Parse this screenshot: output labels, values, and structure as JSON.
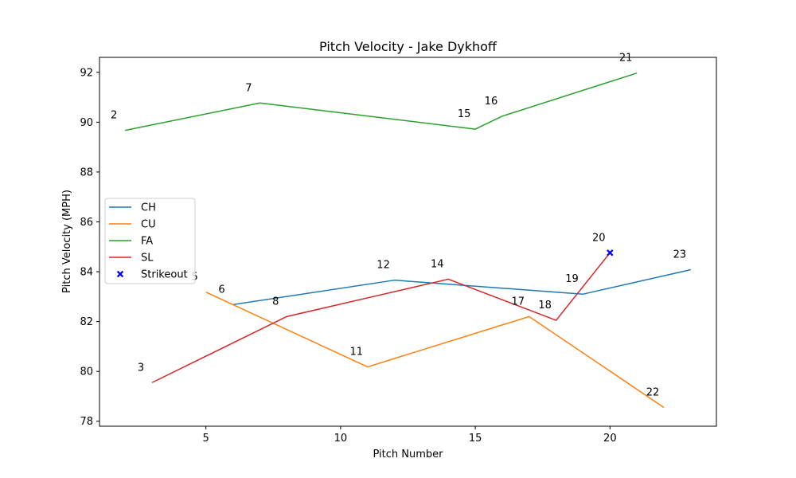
{
  "chart_data": {
    "type": "line",
    "title": "Pitch Velocity - Jake Dykhoff",
    "xlabel": "Pitch Number",
    "ylabel": "Pitch Velocity (MPH)",
    "xlim": [
      1.05,
      23.95
    ],
    "ylim": [
      77.8,
      92.6
    ],
    "xticks": [
      5,
      10,
      15,
      20
    ],
    "yticks": [
      78,
      80,
      82,
      84,
      86,
      88,
      90,
      92
    ],
    "grid": false,
    "legend_position": "center-left",
    "series": [
      {
        "name": "CH",
        "color": "#1f77b4",
        "points": [
          {
            "x": 6,
            "y": 82.68
          },
          {
            "x": 12,
            "y": 83.66
          },
          {
            "x": 19,
            "y": 83.1
          },
          {
            "x": 23,
            "y": 84.08
          }
        ]
      },
      {
        "name": "CU",
        "color": "#ff7f0e",
        "points": [
          {
            "x": 5,
            "y": 83.18
          },
          {
            "x": 11,
            "y": 80.18
          },
          {
            "x": 17,
            "y": 82.2
          },
          {
            "x": 22,
            "y": 78.55
          }
        ]
      },
      {
        "name": "FA",
        "color": "#2ca02c",
        "points": [
          {
            "x": 2,
            "y": 89.67
          },
          {
            "x": 7,
            "y": 90.77
          },
          {
            "x": 15,
            "y": 89.72
          },
          {
            "x": 16,
            "y": 90.24
          },
          {
            "x": 21,
            "y": 91.97
          }
        ]
      },
      {
        "name": "SL",
        "color": "#d62728",
        "points": [
          {
            "x": 3,
            "y": 79.55
          },
          {
            "x": 8,
            "y": 82.2
          },
          {
            "x": 14,
            "y": 83.7
          },
          {
            "x": 18,
            "y": 82.05
          },
          {
            "x": 20,
            "y": 84.76
          }
        ]
      }
    ],
    "strikeouts": {
      "name": "Strikeout",
      "color": "#0000ff",
      "points": [
        {
          "x": 20,
          "y": 84.76
        }
      ]
    },
    "point_labels": [
      {
        "text": "2",
        "x": 2,
        "y": 89.67
      },
      {
        "text": "3",
        "x": 3,
        "y": 79.55
      },
      {
        "text": "5",
        "x": 5,
        "y": 83.18
      },
      {
        "text": "6",
        "x": 6,
        "y": 82.68
      },
      {
        "text": "7",
        "x": 7,
        "y": 90.77
      },
      {
        "text": "8",
        "x": 8,
        "y": 82.2
      },
      {
        "text": "11",
        "x": 11,
        "y": 80.18
      },
      {
        "text": "12",
        "x": 12,
        "y": 83.66
      },
      {
        "text": "14",
        "x": 14,
        "y": 83.7
      },
      {
        "text": "15",
        "x": 15,
        "y": 89.72
      },
      {
        "text": "16",
        "x": 16,
        "y": 90.24
      },
      {
        "text": "17",
        "x": 17,
        "y": 82.2
      },
      {
        "text": "18",
        "x": 18,
        "y": 82.05
      },
      {
        "text": "19",
        "x": 19,
        "y": 83.1
      },
      {
        "text": "20",
        "x": 20,
        "y": 84.76
      },
      {
        "text": "21",
        "x": 21,
        "y": 91.97
      },
      {
        "text": "22",
        "x": 22,
        "y": 78.55
      },
      {
        "text": "23",
        "x": 23,
        "y": 84.08
      }
    ]
  }
}
